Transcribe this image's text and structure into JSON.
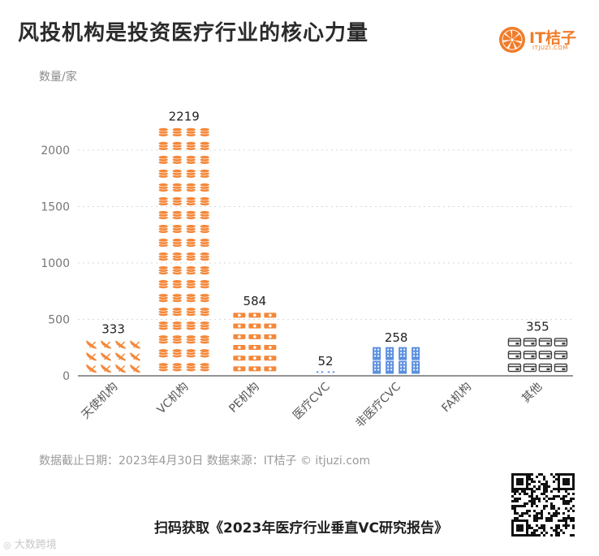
{
  "header": {
    "title": "风投机构是投资医疗行业的核心力量",
    "unit": "数量/家"
  },
  "logo": {
    "name": "IT桔子",
    "domain": "ITJUZI.COM",
    "icon": "orange-slice-icon",
    "color": "#f07c2a"
  },
  "footer": {
    "source": "数据截止日期：2023年4月30日 数据来源：IT桔子 © itjuzi.com",
    "cta": "扫码获取《2023年医疗行业垂直VC研究报告》",
    "watermark": "大数跨境",
    "qr_icon": "qr-code-icon"
  },
  "chart_data": {
    "type": "bar",
    "categories": [
      "天使机构",
      "VC机构",
      "PE机构",
      "医疗CVC",
      "非医疗CVC",
      "FA机构",
      "其他"
    ],
    "values": [
      333,
      2219,
      584,
      52,
      258,
      null,
      355
    ],
    "value_labels": [
      "333",
      "2219",
      "584",
      "52",
      "258",
      "",
      "355"
    ],
    "icons": [
      "plane-icon",
      "coin-stack-icon",
      "banknote-icon",
      "shield-icon",
      "building-icon",
      "",
      "wallet-icon"
    ],
    "colors": [
      "#f4883a",
      "#f4883a",
      "#f4883a",
      "#5b8fe0",
      "#5b8fe0",
      "#5b8fe0",
      "#3d3d3d"
    ],
    "ylabel": "数量/家",
    "ylim": [
      0,
      2250
    ],
    "yticks": [
      0,
      500,
      1000,
      1500,
      2000
    ],
    "grid": true
  }
}
